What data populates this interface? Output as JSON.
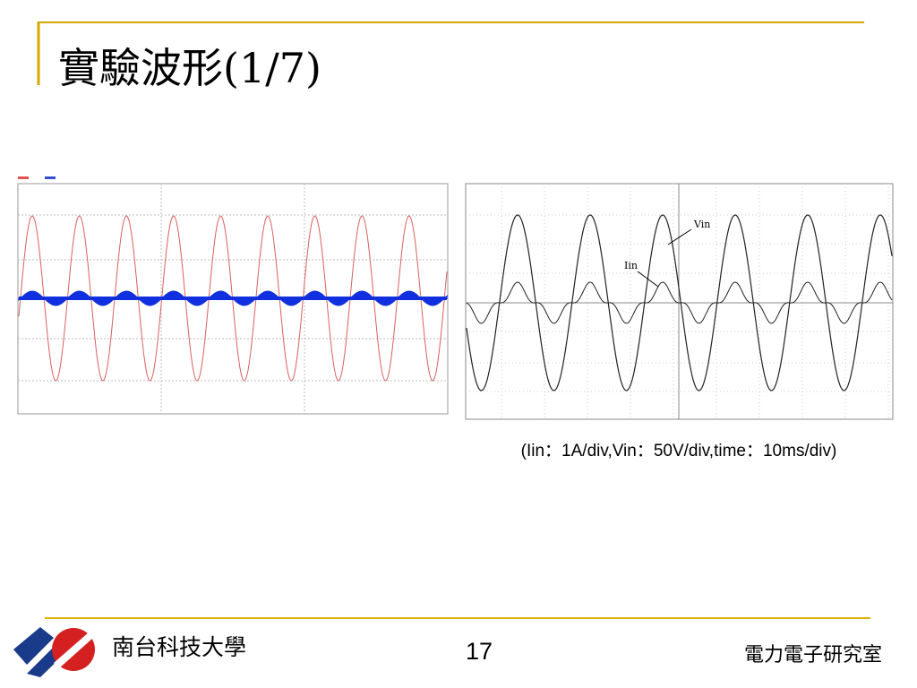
{
  "title": "實驗波形(1/7)",
  "figure_right": {
    "labels": [
      "Vin",
      "Iin"
    ]
  },
  "caption": "(Iin：1A/div,Vin：50V/div,time：10ms/div)",
  "footer": {
    "school": "南台科技大學",
    "page": "17",
    "lab": "電力電子研究室"
  }
}
